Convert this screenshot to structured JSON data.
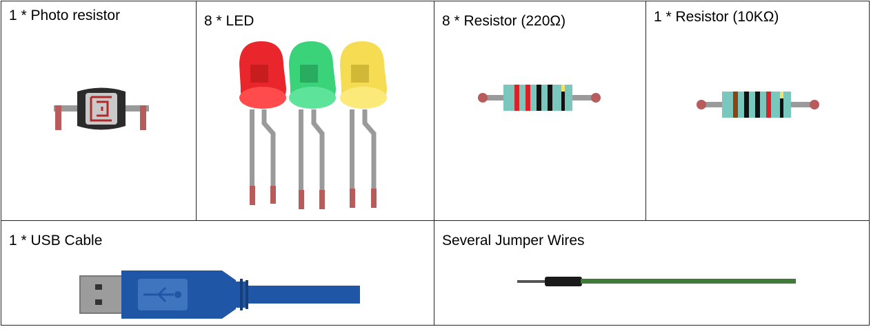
{
  "components": {
    "photoresistor": {
      "label": "1 * Photo resistor"
    },
    "led": {
      "label": "8 * LED"
    },
    "resistor_220": {
      "label": "8 * Resistor (220Ω)"
    },
    "resistor_10k": {
      "label": "1 * Resistor (10KΩ)"
    },
    "usb_cable": {
      "label": "1 * USB Cable"
    },
    "jumper_wires": {
      "label": "Several Jumper Wires"
    }
  },
  "colors": {
    "led_red": "#e8262b",
    "led_green": "#3ad37a",
    "led_yellow": "#f5dc52",
    "usb_blue": "#1f56a5",
    "wire_green": "#3f7a3b",
    "lead_grey": "#9a9a9a",
    "lead_tip": "#b85b5b",
    "resistor_body": "#79c7bd"
  }
}
